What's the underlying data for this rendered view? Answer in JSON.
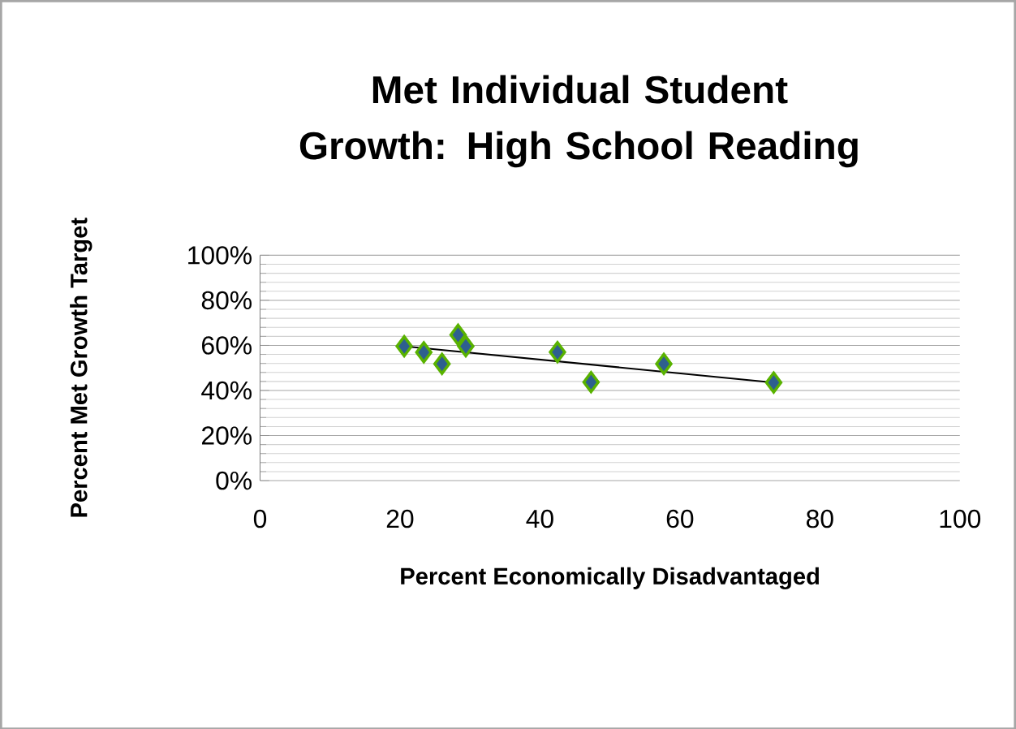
{
  "chart_data": {
    "type": "scatter",
    "title": "Met Individual Student Growth: High School Reading",
    "xlabel": "Percent Economically Disadvantaged",
    "ylabel": "Percent Met Growth Target",
    "xlim": [
      0,
      100
    ],
    "xticks": [
      0,
      20,
      40,
      60,
      80,
      100
    ],
    "ylim": [
      0,
      100
    ],
    "yticks": [
      {
        "value": 0,
        "label": "0%"
      },
      {
        "value": 20,
        "label": "20%"
      },
      {
        "value": 40,
        "label": "40%"
      },
      {
        "value": 60,
        "label": "60%"
      },
      {
        "value": 80,
        "label": "80%"
      },
      {
        "value": 100,
        "label": "100%"
      }
    ],
    "grid": "y",
    "series": [
      {
        "marker": "diamond",
        "color": "#2e5f8f",
        "x": [
          20.6,
          23.4,
          26.0,
          28.3,
          29.4,
          42.5,
          47.3,
          57.7,
          73.4
        ],
        "values": [
          59.6,
          56.9,
          51.8,
          64.7,
          59.6,
          57.0,
          43.7,
          51.8,
          43.5
        ]
      },
      {
        "type": "line",
        "marker": "none",
        "color": "#000000",
        "x": [
          20.6,
          73.4
        ],
        "values": [
          59.6,
          43.5
        ]
      }
    ]
  }
}
